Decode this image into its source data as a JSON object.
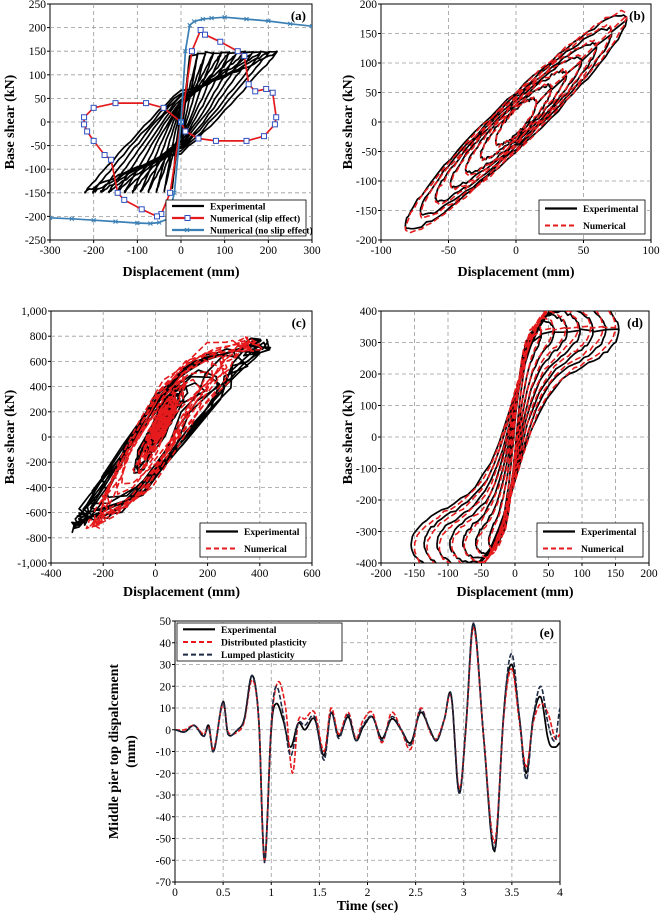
{
  "chart_data": [
    {
      "id": "a",
      "type": "line",
      "panel_label": "(a)",
      "xlabel": "Displacement (mm)",
      "ylabel": "Base shear (kN)",
      "xlim": [
        -300,
        300
      ],
      "ylim": [
        -250,
        250
      ],
      "xticks": [
        -300,
        -200,
        -100,
        0,
        100,
        200,
        300
      ],
      "yticks": [
        -250,
        -200,
        -150,
        -100,
        -50,
        0,
        50,
        100,
        150,
        200,
        250
      ],
      "legend_position": "bottom-right",
      "series": [
        {
          "name": "Experimental",
          "color": "#000000",
          "style": "solid",
          "marker": "none",
          "cycles": 12,
          "amp_start": 20,
          "amp_end": 220,
          "force_peak": 150,
          "residual": 70
        },
        {
          "name": "Numerical (slip effect)",
          "color": "#e41a1c",
          "style": "solid",
          "marker": "square",
          "x": [
            0,
            25,
            45,
            55,
            90,
            130,
            145,
            155,
            170,
            195,
            210,
            218,
            215,
            190,
            150,
            80,
            40,
            10,
            0,
            -25,
            -45,
            -55,
            -90,
            -130,
            -145,
            -160,
            -175,
            -200,
            -215,
            -222,
            -222,
            -200,
            -150,
            -80,
            -40,
            0
          ],
          "y": [
            0,
            150,
            195,
            185,
            170,
            150,
            140,
            80,
            65,
            70,
            62,
            10,
            -5,
            -30,
            -40,
            -40,
            -35,
            -20,
            0,
            -150,
            -195,
            -200,
            -185,
            -165,
            -150,
            -80,
            -70,
            -40,
            -20,
            -5,
            10,
            30,
            40,
            40,
            30,
            0
          ]
        },
        {
          "name": "Numerical (no slip effect)",
          "color": "#3a7fb5",
          "style": "solid",
          "marker": "x",
          "x": [
            -300,
            -250,
            -200,
            -150,
            -100,
            -70,
            -50,
            -30,
            -15,
            0,
            10,
            20,
            30,
            50,
            70,
            100,
            150,
            200,
            250,
            300
          ],
          "y": [
            -203,
            -205,
            -208,
            -211,
            -214,
            -215,
            -213,
            -205,
            -150,
            0,
            150,
            205,
            213,
            218,
            220,
            222,
            218,
            214,
            208,
            203
          ]
        }
      ]
    },
    {
      "id": "b",
      "type": "line",
      "panel_label": "(b)",
      "xlabel": "Displacement (mm)",
      "ylabel": "Base shear (kN)",
      "xlim": [
        -100,
        100
      ],
      "ylim": [
        -200,
        200
      ],
      "xticks": [
        -100,
        -50,
        0,
        50,
        100
      ],
      "yticks": [
        -200,
        -150,
        -100,
        -50,
        0,
        50,
        100,
        150,
        200
      ],
      "legend_position": "bottom-right",
      "series": [
        {
          "name": "Experimental",
          "color": "#000000",
          "style": "solid",
          "cycles": 7,
          "amp_start": 15,
          "amp_end": 82,
          "force_peak": 175,
          "tilt": 1.6
        },
        {
          "name": "Numerical",
          "color": "#e41a1c",
          "style": "dashed",
          "cycles": 7,
          "amp_start": 15,
          "amp_end": 82,
          "force_peak": 180,
          "tilt": 1.6
        }
      ]
    },
    {
      "id": "c",
      "type": "line",
      "panel_label": "(c)",
      "xlabel": "Displacement (mm)",
      "ylabel": "Base shear (kN)",
      "xlim": [
        -400,
        600
      ],
      "ylim": [
        -1000,
        1000
      ],
      "xticks": [
        -400,
        -200,
        0,
        200,
        400,
        600
      ],
      "xtick_labels": [
        "-400",
        "-200",
        "0",
        "200",
        "400",
        "600"
      ],
      "yticks": [
        -1000,
        -800,
        -600,
        -400,
        -200,
        0,
        200,
        400,
        600,
        800,
        1000
      ],
      "ytick_labels": [
        "-1,000",
        "-800",
        "-600",
        "-400",
        "-200",
        "0",
        "200",
        "400",
        "600",
        "800",
        "1,000"
      ],
      "legend_position": "bottom-right",
      "series": [
        {
          "name": "Experimental",
          "color": "#000000",
          "style": "solid",
          "max_disp": 520,
          "min_disp": -360,
          "force_peak": 800
        },
        {
          "name": "Numerical",
          "color": "#e41a1c",
          "style": "dashed",
          "max_disp": 460,
          "min_disp": -290,
          "force_peak": 850
        }
      ]
    },
    {
      "id": "d",
      "type": "line",
      "panel_label": "(d)",
      "xlabel": "Displacement (mm)",
      "ylabel": "Base shear (kN)",
      "xlim": [
        -200,
        200
      ],
      "ylim": [
        -400,
        400
      ],
      "xticks": [
        -200,
        -150,
        -100,
        -50,
        0,
        50,
        100,
        150,
        200
      ],
      "yticks": [
        -400,
        -300,
        -200,
        -100,
        0,
        100,
        200,
        300,
        400
      ],
      "legend_position": "bottom-right",
      "series": [
        {
          "name": "Experimental",
          "color": "#000000",
          "style": "solid",
          "cycles": 8,
          "amp_start": 20,
          "amp_end": 155,
          "force_peak": 340
        },
        {
          "name": "Numerical",
          "color": "#e41a1c",
          "style": "dashed",
          "cycles": 8,
          "amp_start": 20,
          "amp_end": 150,
          "force_peak": 350
        }
      ]
    },
    {
      "id": "e",
      "type": "line",
      "panel_label": "(e)",
      "xlabel": "Time (sec)",
      "ylabel": "Middle pier top dispalcement (mm)",
      "xlim": [
        0,
        4
      ],
      "ylim": [
        -70,
        50
      ],
      "xticks": [
        0,
        0.5,
        1,
        1.5,
        2,
        2.5,
        3,
        3.5,
        4
      ],
      "xtick_labels": [
        "0",
        "0.5",
        "1",
        "1.5",
        "2",
        "2.5",
        "3",
        "3.5",
        "4"
      ],
      "yticks": [
        -70,
        -60,
        -50,
        -40,
        -30,
        -20,
        -10,
        0,
        10,
        20,
        30,
        40,
        50
      ],
      "legend_position": "top-left",
      "series": [
        {
          "name": "Experimental",
          "color": "#000000",
          "style": "solid",
          "x": [
            0,
            0.1,
            0.2,
            0.3,
            0.35,
            0.4,
            0.5,
            0.55,
            0.65,
            0.72,
            0.8,
            0.87,
            0.93,
            1.0,
            1.05,
            1.12,
            1.2,
            1.28,
            1.35,
            1.45,
            1.55,
            1.62,
            1.7,
            1.8,
            1.88,
            1.95,
            2.05,
            2.15,
            2.25,
            2.35,
            2.45,
            2.55,
            2.65,
            2.72,
            2.8,
            2.87,
            2.95,
            3.02,
            3.1,
            3.2,
            3.32,
            3.42,
            3.5,
            3.58,
            3.65,
            3.72,
            3.8,
            3.88,
            3.95,
            4.0
          ],
          "y": [
            0,
            -1,
            2,
            -3,
            2,
            -10,
            13,
            -2,
            0,
            5,
            25,
            5,
            -60,
            0,
            12,
            5,
            -8,
            3,
            0,
            5,
            -12,
            8,
            -3,
            6,
            -5,
            1,
            6,
            -4,
            5,
            0,
            -6,
            8,
            0,
            -5,
            5,
            16,
            -29,
            0,
            49,
            0,
            -56,
            10,
            30,
            5,
            -20,
            5,
            15,
            -5,
            -8,
            -6
          ]
        },
        {
          "name": "Distributed plasticity",
          "color": "#e41a1c",
          "style": "dashed",
          "x": [
            0,
            0.1,
            0.2,
            0.3,
            0.35,
            0.4,
            0.5,
            0.55,
            0.65,
            0.72,
            0.8,
            0.87,
            0.93,
            1.0,
            1.07,
            1.15,
            1.22,
            1.28,
            1.35,
            1.45,
            1.55,
            1.62,
            1.7,
            1.8,
            1.88,
            1.95,
            2.05,
            2.15,
            2.25,
            2.35,
            2.45,
            2.55,
            2.65,
            2.72,
            2.8,
            2.87,
            2.95,
            3.02,
            3.1,
            3.2,
            3.32,
            3.42,
            3.5,
            3.58,
            3.65,
            3.72,
            3.8,
            3.88,
            3.95,
            4.0
          ],
          "y": [
            0,
            0,
            2,
            -2,
            1,
            -9,
            12,
            -1,
            -1,
            4,
            23,
            5,
            -61,
            2,
            22,
            10,
            -20,
            4,
            5,
            8,
            -10,
            10,
            -2,
            8,
            -4,
            4,
            8,
            -6,
            8,
            0,
            -9,
            10,
            -1,
            -4,
            5,
            15,
            -27,
            -1,
            47,
            0,
            -52,
            8,
            28,
            3,
            -17,
            3,
            12,
            7,
            -4,
            -2
          ]
        },
        {
          "name": "Lumped plasticity",
          "color": "#1f2a44",
          "style": "dashed",
          "x": [
            0,
            0.1,
            0.2,
            0.3,
            0.35,
            0.4,
            0.5,
            0.55,
            0.65,
            0.72,
            0.8,
            0.87,
            0.93,
            1.0,
            1.05,
            1.12,
            1.2,
            1.28,
            1.35,
            1.45,
            1.55,
            1.62,
            1.7,
            1.8,
            1.88,
            1.95,
            2.05,
            2.15,
            2.25,
            2.35,
            2.45,
            2.55,
            2.65,
            2.72,
            2.8,
            2.87,
            2.95,
            3.02,
            3.1,
            3.2,
            3.32,
            3.42,
            3.5,
            3.58,
            3.65,
            3.72,
            3.8,
            3.88,
            3.95,
            4.0
          ],
          "y": [
            0,
            -1,
            2,
            -3,
            1,
            -10,
            13,
            -2,
            0,
            5,
            25,
            5,
            -61,
            2,
            20,
            8,
            -12,
            3,
            2,
            6,
            -14,
            8,
            -4,
            7,
            -5,
            2,
            6,
            -5,
            6,
            0,
            -7,
            9,
            0,
            -5,
            5,
            16,
            -29,
            0,
            49,
            0,
            -55,
            10,
            35,
            5,
            -23,
            5,
            20,
            2,
            -5,
            10
          ]
        }
      ]
    }
  ]
}
